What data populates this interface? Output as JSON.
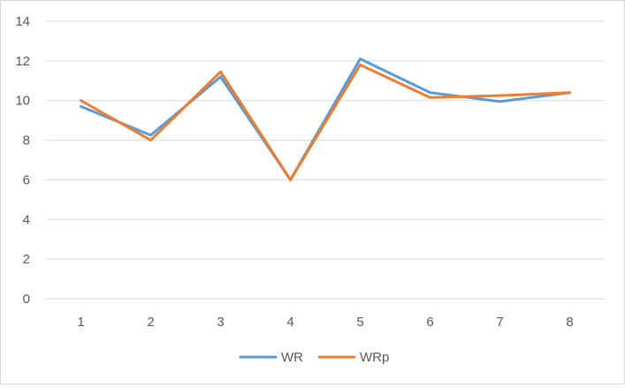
{
  "chart_data": {
    "type": "line",
    "title": "",
    "xlabel": "",
    "ylabel": "",
    "x": [
      1,
      2,
      3,
      4,
      5,
      6,
      7,
      8
    ],
    "categories": [
      "1",
      "2",
      "3",
      "4",
      "5",
      "6",
      "7",
      "8"
    ],
    "ylim": [
      0,
      14
    ],
    "yticks": [
      0,
      2,
      4,
      6,
      8,
      10,
      12,
      14
    ],
    "grid": true,
    "legend_position": "bottom",
    "series": [
      {
        "name": "WR",
        "color": "#5b9bd5",
        "values": [
          9.7,
          8.25,
          11.2,
          6.0,
          12.1,
          10.4,
          9.95,
          10.4
        ]
      },
      {
        "name": "WRp",
        "color": "#ed7d31",
        "values": [
          10.0,
          8.0,
          11.45,
          6.0,
          11.8,
          10.15,
          10.25,
          10.4
        ]
      }
    ]
  }
}
